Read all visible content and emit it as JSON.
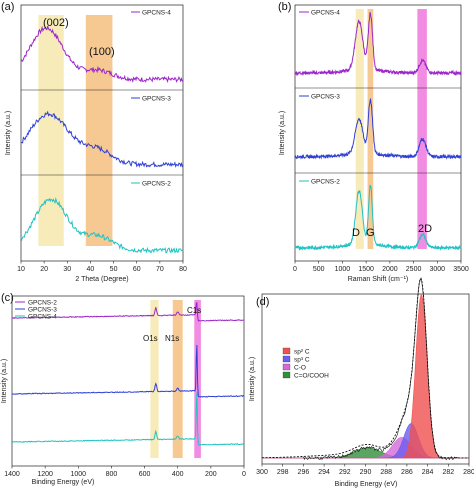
{
  "colors": {
    "purple": "#9b27c9",
    "blue": "#2f3fd6",
    "cyan": "#22c2c2",
    "yellow": "#f6e9ad",
    "orange": "#f5c07f",
    "magenta": "#f078dd",
    "sp2": "#f05050",
    "sp3": "#6c5cf0",
    "co": "#d36ad8",
    "cooh": "#2f8f3a",
    "envelope": "#111111"
  },
  "chart_data": [
    {
      "panel": "(a)",
      "type": "line",
      "xlabel": "2 Theta (Degree)",
      "ylabel": "Intensity (a.u.)",
      "xlim": [
        10,
        80
      ],
      "x_ticks": [
        "10",
        "20",
        "30",
        "40",
        "50",
        "60",
        "70",
        "80"
      ],
      "highlight_bands": [
        {
          "x": [
            17.5,
            28.5
          ],
          "color": "yellow"
        },
        {
          "x": [
            38,
            49.5
          ],
          "color": "orange"
        }
      ],
      "annotations": [
        "(002)",
        "(100)"
      ],
      "series": [
        {
          "name": "GPCNS-4",
          "color": "purple",
          "peaks": [
            {
              "x": 21,
              "height": 1.0,
              "width": 4.5
            },
            {
              "x": 43,
              "height": 0.18,
              "width": 4
            }
          ],
          "baseline": 0.05
        },
        {
          "name": "GPCNS-3",
          "color": "blue",
          "peaks": [
            {
              "x": 22,
              "height": 1.0,
              "width": 5.5
            },
            {
              "x": 43,
              "height": 0.28,
              "width": 4
            }
          ],
          "baseline": 0.05
        },
        {
          "name": "GPCNS-2",
          "color": "cyan",
          "peaks": [
            {
              "x": 23,
              "height": 1.0,
              "width": 4.5
            },
            {
              "x": 43,
              "height": 0.28,
              "width": 4
            }
          ],
          "baseline": 0.05
        }
      ]
    },
    {
      "panel": "(b)",
      "type": "line",
      "xlabel": "Raman Shift (cm⁻¹)",
      "ylabel": "Intensity (a.u.)",
      "xlim": [
        0,
        3500
      ],
      "x_ticks": [
        "0",
        "500",
        "1000",
        "1500",
        "2000",
        "2500",
        "3000",
        "3500"
      ],
      "highlight_bands": [
        {
          "x": [
            1280,
            1450
          ],
          "color": "yellow"
        },
        {
          "x": [
            1530,
            1650
          ],
          "color": "orange"
        },
        {
          "x": [
            2580,
            2780
          ],
          "color": "magenta"
        }
      ],
      "annotations": [
        "D",
        "G",
        "2D"
      ],
      "series": [
        {
          "name": "GPCNS-4",
          "color": "purple",
          "peaks": [
            {
              "x": 1350,
              "height": 0.78,
              "width": 80
            },
            {
              "x": 1590,
              "height": 0.9,
              "width": 45
            },
            {
              "x": 2690,
              "height": 0.2,
              "width": 70
            }
          ],
          "baseline": 0.08
        },
        {
          "name": "GPCNS-3",
          "color": "blue",
          "peaks": [
            {
              "x": 1350,
              "height": 0.55,
              "width": 80
            },
            {
              "x": 1590,
              "height": 0.85,
              "width": 45
            },
            {
              "x": 2690,
              "height": 0.28,
              "width": 70
            }
          ],
          "baseline": 0.1
        },
        {
          "name": "GPCNS-2",
          "color": "cyan",
          "peaks": [
            {
              "x": 1350,
              "height": 0.82,
              "width": 70
            },
            {
              "x": 1590,
              "height": 0.9,
              "width": 40
            },
            {
              "x": 2690,
              "height": 0.2,
              "width": 70
            }
          ],
          "baseline": 0.05
        }
      ]
    },
    {
      "panel": "(c)",
      "type": "line",
      "xlabel": "Binding Energy (eV)",
      "ylabel": "Intensity (a.u.)",
      "xlim": [
        1400,
        0
      ],
      "x_ticks": [
        "1400",
        "1200",
        "1000",
        "800",
        "600",
        "400",
        "200",
        "0"
      ],
      "highlight_bands": [
        {
          "x": [
            565,
            515
          ],
          "color": "yellow"
        },
        {
          "x": [
            430,
            370
          ],
          "color": "orange"
        },
        {
          "x": [
            300,
            260
          ],
          "color": "magenta"
        }
      ],
      "annotations": [
        "O1s",
        "N1s",
        "C1s"
      ],
      "series": [
        {
          "name": "GPCNS-2",
          "color": "purple"
        },
        {
          "name": "GPCNS-3",
          "color": "blue"
        },
        {
          "name": "GPCNS-4",
          "color": "cyan"
        }
      ]
    },
    {
      "panel": "(d)",
      "type": "area",
      "xlabel": "Binding Energy (eV)",
      "ylabel": "Intensity (a.u.)",
      "xlim": [
        300,
        280
      ],
      "x_ticks": [
        "300",
        "298",
        "296",
        "294",
        "292",
        "290",
        "288",
        "286",
        "284",
        "282",
        "280"
      ],
      "series": [
        {
          "name": "sp² C",
          "color": "sp2",
          "center": 284.6,
          "height": 0.95,
          "width": 0.55
        },
        {
          "name": "sp³ C",
          "color": "sp3",
          "center": 285.6,
          "height": 0.2,
          "width": 0.7
        },
        {
          "name": "C-O",
          "color": "co",
          "center": 286.5,
          "height": 0.12,
          "width": 0.9
        },
        {
          "name": "C=O/COOH",
          "color": "cooh",
          "center": 289.8,
          "height": 0.06,
          "width": 1.3
        }
      ]
    }
  ]
}
